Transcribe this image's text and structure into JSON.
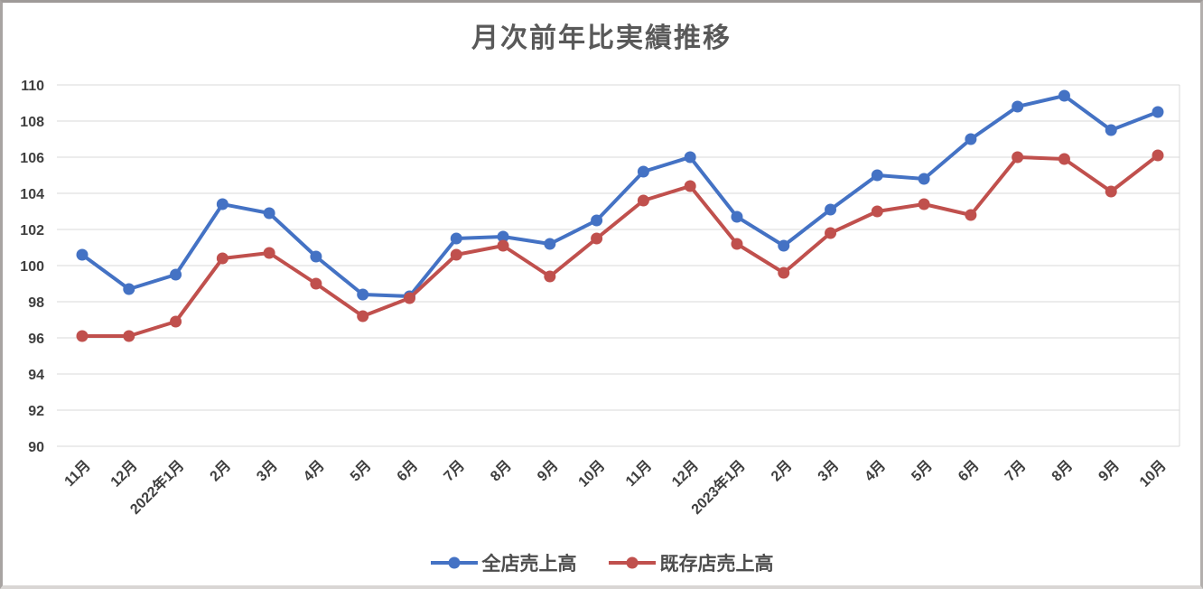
{
  "title": "月次前年比実績推移",
  "colors": {
    "series_all_stores": "#4472C4",
    "series_existing_stores": "#C0504D",
    "gridline": "#D9D9D9",
    "title_text": "#595959",
    "axis_text": "#3F3F3F"
  },
  "legend": {
    "items": [
      {
        "label": "全店売上高",
        "color": "#4472C4"
      },
      {
        "label": "既存店売上高",
        "color": "#C0504D"
      }
    ]
  },
  "chart_data": {
    "type": "line",
    "title": "月次前年比実績推移",
    "categories": [
      "11月",
      "12月",
      "2022年1月",
      "2月",
      "3月",
      "4月",
      "5月",
      "6月",
      "7月",
      "8月",
      "9月",
      "10月",
      "11月",
      "12月",
      "2023年1月",
      "2月",
      "3月",
      "4月",
      "5月",
      "6月",
      "7月",
      "8月",
      "9月",
      "10月"
    ],
    "series": [
      {
        "name": "全店売上高",
        "color": "#4472C4",
        "values": [
          100.6,
          98.7,
          99.5,
          103.4,
          102.9,
          100.5,
          98.4,
          98.3,
          101.5,
          101.6,
          101.2,
          102.5,
          105.2,
          106.0,
          102.7,
          101.1,
          103.1,
          105.0,
          104.8,
          107.0,
          108.8,
          109.4,
          107.5,
          108.5
        ]
      },
      {
        "name": "既存店売上高",
        "color": "#C0504D",
        "values": [
          96.1,
          96.1,
          96.9,
          100.4,
          100.7,
          99.0,
          97.2,
          98.2,
          100.6,
          101.1,
          99.4,
          101.5,
          103.6,
          104.4,
          101.2,
          99.6,
          101.8,
          103.0,
          103.4,
          102.8,
          106.0,
          105.9,
          104.1,
          106.1
        ]
      }
    ],
    "xlabel": "",
    "ylabel": "",
    "ylim": [
      90,
      110
    ],
    "yticks": [
      90,
      92,
      94,
      96,
      98,
      100,
      102,
      104,
      106,
      108,
      110
    ],
    "grid": true,
    "legend_position": "bottom",
    "marker": "circle"
  }
}
